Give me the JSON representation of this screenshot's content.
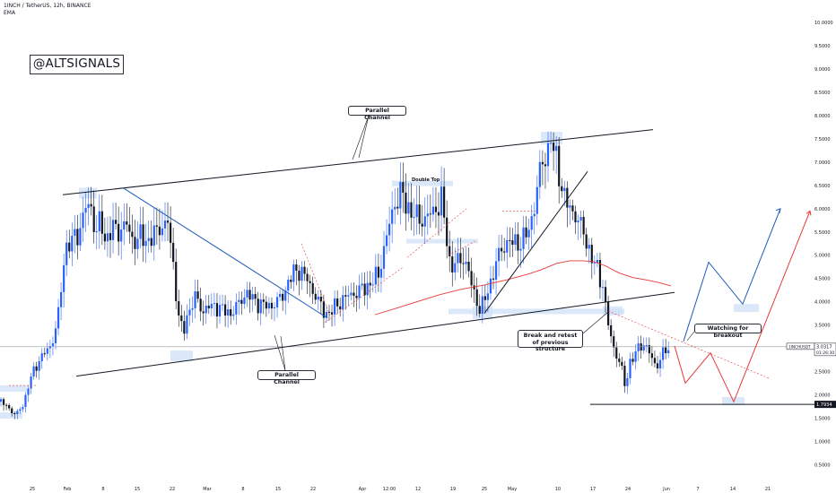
{
  "header": {
    "title": "1INCH / TetherUS, 12h, BINANCE",
    "indicator": "EMA"
  },
  "watermark": "@ALTSIGNALS",
  "annotations": {
    "channel_top": "Parallel Channel",
    "channel_bottom": "Parallel Channel",
    "double_top": "Double Top",
    "break_retest": "Break and retest of previous structure",
    "breakout": "Watching for breakout"
  },
  "price_labels": {
    "symbol": "1INCHUSDT",
    "current": "3.0317",
    "countdown": "01:26:30",
    "support": "1.7934"
  },
  "colors": {
    "bull": "#2962ff",
    "bear": "#131722",
    "ema": "#e53935",
    "trend_blue": "#1e5ab8",
    "projection_red": "#e53935",
    "highlight": "#cfe0f7"
  },
  "chart_data": {
    "type": "candlestick",
    "ylim": [
      0.3,
      10.2
    ],
    "y_ticks": [
      "0.5000",
      "1.0000",
      "1.5000",
      "2.0000",
      "2.5000",
      "3.0000",
      "3.5000",
      "4.0000",
      "4.5000",
      "5.0000",
      "5.5000",
      "6.0000",
      "6.5000",
      "7.0000",
      "7.5000",
      "8.0000",
      "8.5000",
      "9.0000",
      "9.5000",
      "10.0000"
    ],
    "x_ticks": [
      "25",
      "Feb",
      "8",
      "15",
      "22",
      "Mar",
      "8",
      "15",
      "22",
      "Apr",
      "12:00",
      "12",
      "19",
      "25",
      "May",
      "10",
      "17",
      "24",
      "Jun",
      "7",
      "14",
      "21"
    ],
    "ema_points": [
      [
        418,
        3.72
      ],
      [
        440,
        3.85
      ],
      [
        465,
        4.0
      ],
      [
        490,
        4.15
      ],
      [
        515,
        4.27
      ],
      [
        540,
        4.36
      ],
      [
        565,
        4.47
      ],
      [
        590,
        4.6
      ],
      [
        605,
        4.7
      ],
      [
        620,
        4.82
      ],
      [
        635,
        4.88
      ],
      [
        650,
        4.88
      ],
      [
        662,
        4.86
      ],
      [
        675,
        4.77
      ],
      [
        690,
        4.62
      ],
      [
        705,
        4.52
      ],
      [
        720,
        4.47
      ],
      [
        735,
        4.41
      ],
      [
        748,
        4.34
      ]
    ],
    "candle_path": [
      [
        0,
        1.85
      ],
      [
        8,
        1.75
      ],
      [
        18,
        1.55
      ],
      [
        27,
        1.85
      ],
      [
        34,
        2.35
      ],
      [
        42,
        2.7
      ],
      [
        50,
        2.9
      ],
      [
        58,
        3.1
      ],
      [
        66,
        3.8
      ],
      [
        72,
        5.1
      ],
      [
        80,
        5.3
      ],
      [
        88,
        5.5
      ],
      [
        95,
        6.0
      ],
      [
        101,
        6.1
      ],
      [
        106,
        5.5
      ],
      [
        112,
        5.7
      ],
      [
        118,
        5.3
      ],
      [
        125,
        5.6
      ],
      [
        132,
        5.5
      ],
      [
        140,
        5.7
      ],
      [
        148,
        5.3
      ],
      [
        156,
        5.4
      ],
      [
        163,
        5.3
      ],
      [
        170,
        5.4
      ],
      [
        178,
        5.6
      ],
      [
        187,
        5.7
      ],
      [
        193,
        4.8
      ],
      [
        199,
        3.7
      ],
      [
        204,
        3.3
      ],
      [
        210,
        3.8
      ],
      [
        218,
        4.1
      ],
      [
        226,
        3.8
      ],
      [
        234,
        3.9
      ],
      [
        242,
        3.9
      ],
      [
        250,
        3.8
      ],
      [
        258,
        3.75
      ],
      [
        266,
        3.95
      ],
      [
        274,
        4.2
      ],
      [
        282,
        4.05
      ],
      [
        290,
        3.95
      ],
      [
        298,
        3.9
      ],
      [
        306,
        3.95
      ],
      [
        314,
        4.1
      ],
      [
        320,
        4.35
      ],
      [
        326,
        4.6
      ],
      [
        333,
        4.7
      ],
      [
        340,
        4.55
      ],
      [
        347,
        4.3
      ],
      [
        354,
        4.05
      ],
      [
        360,
        3.8
      ],
      [
        367,
        3.75
      ],
      [
        374,
        3.9
      ],
      [
        382,
        4.05
      ],
      [
        390,
        4.15
      ],
      [
        398,
        4.2
      ],
      [
        406,
        4.3
      ],
      [
        414,
        4.4
      ],
      [
        422,
        4.6
      ],
      [
        430,
        5.3
      ],
      [
        438,
        6.0
      ],
      [
        446,
        6.35
      ],
      [
        454,
        6.05
      ],
      [
        462,
        5.85
      ],
      [
        470,
        5.75
      ],
      [
        478,
        5.85
      ],
      [
        486,
        6.0
      ],
      [
        492,
        6.2
      ],
      [
        497,
        5.5
      ],
      [
        502,
        4.75
      ],
      [
        510,
        4.85
      ],
      [
        518,
        4.95
      ],
      [
        524,
        4.5
      ],
      [
        530,
        4.05
      ],
      [
        536,
        3.85
      ],
      [
        542,
        4.1
      ],
      [
        548,
        4.5
      ],
      [
        554,
        4.9
      ],
      [
        560,
        5.15
      ],
      [
        566,
        5.3
      ],
      [
        574,
        5.25
      ],
      [
        582,
        5.3
      ],
      [
        590,
        5.55
      ],
      [
        596,
        6.1
      ],
      [
        602,
        6.8
      ],
      [
        608,
        7.15
      ],
      [
        614,
        7.45
      ],
      [
        619,
        7.15
      ],
      [
        624,
        6.7
      ],
      [
        630,
        6.15
      ],
      [
        636,
        6.0
      ],
      [
        642,
        5.85
      ],
      [
        648,
        5.6
      ],
      [
        654,
        5.3
      ],
      [
        660,
        4.9
      ],
      [
        666,
        4.7
      ],
      [
        672,
        4.35
      ],
      [
        676,
        3.75
      ],
      [
        680,
        3.3
      ],
      [
        686,
        2.9
      ],
      [
        692,
        2.65
      ],
      [
        697,
        2.15
      ],
      [
        702,
        2.7
      ],
      [
        708,
        2.85
      ],
      [
        714,
        3.1
      ],
      [
        720,
        3.05
      ],
      [
        726,
        2.8
      ],
      [
        732,
        2.6
      ],
      [
        738,
        2.85
      ],
      [
        744,
        3.0
      ]
    ],
    "series": [
      {
        "name": "Parallel Channel",
        "values": [
          [
            70,
            6.3
          ],
          [
            728,
            7.7
          ]
        ]
      },
      {
        "name": "Parallel Channel",
        "values": [
          [
            85,
            2.4
          ],
          [
            752,
            4.2
          ]
        ]
      }
    ],
    "support_line": 1.7934,
    "current_price": 3.0317,
    "blue_projection": [
      [
        762,
        3.15
      ],
      [
        790,
        4.85
      ],
      [
        828,
        3.95
      ],
      [
        870,
        6.0
      ]
    ],
    "red_projection": [
      [
        752,
        3.05
      ],
      [
        764,
        2.25
      ],
      [
        792,
        2.9
      ],
      [
        818,
        1.85
      ],
      [
        903,
        5.95
      ]
    ]
  }
}
